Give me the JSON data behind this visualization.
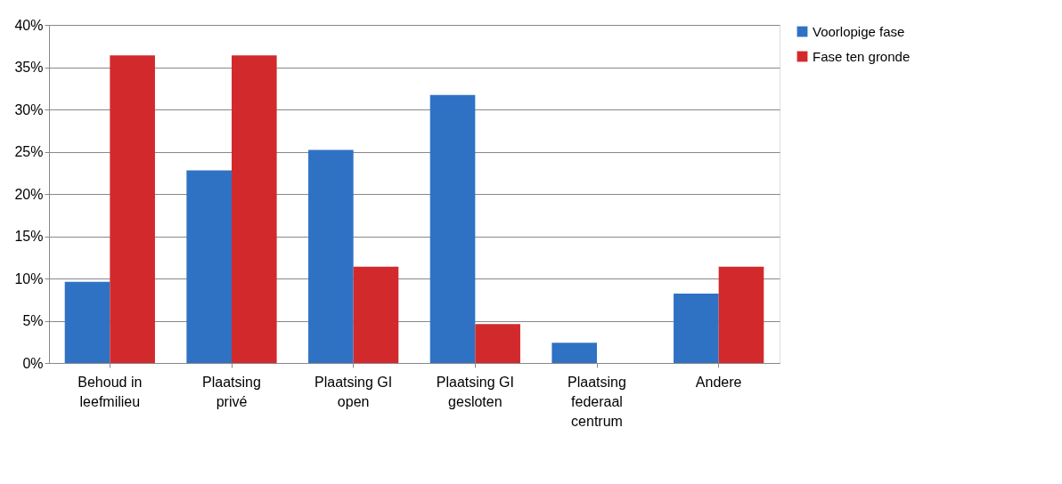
{
  "chart_data": {
    "type": "bar",
    "categories": [
      "Behoud in leefmilieu",
      "Plaatsing privé",
      "Plaatsing GI open",
      "Plaatsing GI gesloten",
      "Plaatsing federaal centrum",
      "Andere"
    ],
    "series": [
      {
        "name": "Voorlopige fase",
        "color": "#2f72c4",
        "values": [
          9.6,
          22.8,
          25.2,
          31.7,
          2.4,
          8.2
        ]
      },
      {
        "name": "Fase ten gronde",
        "color": "#d22a2c",
        "values": [
          36.4,
          36.4,
          11.4,
          4.6,
          0,
          11.4
        ]
      }
    ],
    "ylim": [
      0,
      40
    ],
    "yticks": [
      {
        "value": 0,
        "label": "0%"
      },
      {
        "value": 5,
        "label": "5%"
      },
      {
        "value": 10,
        "label": "10%"
      },
      {
        "value": 15,
        "label": "15%"
      },
      {
        "value": 20,
        "label": "20%"
      },
      {
        "value": 25,
        "label": "25%"
      },
      {
        "value": 30,
        "label": "30%"
      },
      {
        "value": 35,
        "label": "35%"
      },
      {
        "value": 40,
        "label": "40%"
      }
    ],
    "grid": "y",
    "legend": "right"
  }
}
